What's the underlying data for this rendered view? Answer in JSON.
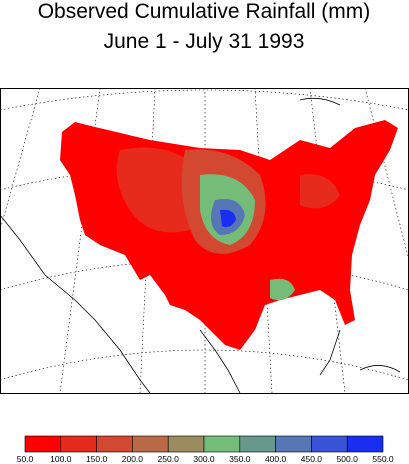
{
  "title": "Observed Cumulative Rainfall (mm)",
  "subtitle": "June 1 - July 31 1993",
  "colorbar": {
    "ticks": [
      {
        "value": 50,
        "label": "50.0"
      },
      {
        "value": 100,
        "label": "100.0"
      },
      {
        "value": 150,
        "label": "150.0"
      },
      {
        "value": 200,
        "label": "200.0"
      },
      {
        "value": 250,
        "label": "250.0"
      },
      {
        "value": 300,
        "label": "300.0"
      },
      {
        "value": 350,
        "label": "350.0"
      },
      {
        "value": 400,
        "label": "400.0"
      },
      {
        "value": 450,
        "label": "450.0"
      },
      {
        "value": 500,
        "label": "500.0"
      },
      {
        "value": 550,
        "label": "550.0"
      }
    ],
    "colors": [
      "#ff0000",
      "#e62a1c",
      "#d24830",
      "#b86a46",
      "#9a8c5e",
      "#74bc78",
      "#66988c",
      "#5676b6",
      "#3852d8",
      "#1a2ef2"
    ]
  }
}
